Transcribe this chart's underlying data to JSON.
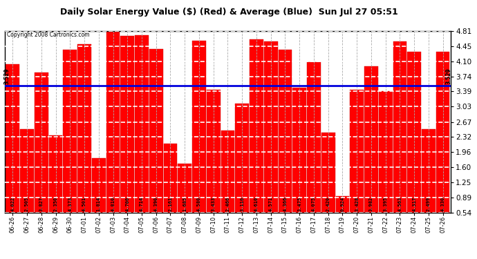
{
  "title": "Daily Solar Energy Value ($) (Red) & Average (Blue)  Sun Jul 27 05:51",
  "copyright": "Copyright 2008 Cartronics.com",
  "average": 3.529,
  "bar_color": "#FF0000",
  "average_color": "#0000DD",
  "background_color": "#FFFFFF",
  "plot_bg_color": "#FFFFFF",
  "ylim": [
    0.54,
    4.81
  ],
  "yticks": [
    0.54,
    0.89,
    1.25,
    1.6,
    1.96,
    2.32,
    2.67,
    3.03,
    3.39,
    3.74,
    4.1,
    4.45,
    4.81
  ],
  "categories": [
    "06-26",
    "06-27",
    "06-28",
    "06-29",
    "06-30",
    "07-01",
    "07-02",
    "07-03",
    "07-04",
    "07-05",
    "07-06",
    "07-07",
    "07-08",
    "07-09",
    "07-10",
    "07-11",
    "07-12",
    "07-13",
    "07-14",
    "07-15",
    "07-16",
    "07-17",
    "07-18",
    "07-19",
    "07-20",
    "07-21",
    "07-22",
    "07-23",
    "07-24",
    "07-25",
    "07-26"
  ],
  "values": [
    4.022,
    2.505,
    3.827,
    2.35,
    4.373,
    4.501,
    1.814,
    4.81,
    4.7,
    4.714,
    4.39,
    2.161,
    1.685,
    4.58,
    3.433,
    2.466,
    3.11,
    4.61,
    4.571,
    4.366,
    3.475,
    4.075,
    2.42,
    0.924,
    3.428,
    3.982,
    3.395,
    4.563,
    4.317,
    2.499,
    4.33
  ],
  "grid_color": "#AAAAAA",
  "label_fontsize": 5.5,
  "avg_label": "3.529"
}
